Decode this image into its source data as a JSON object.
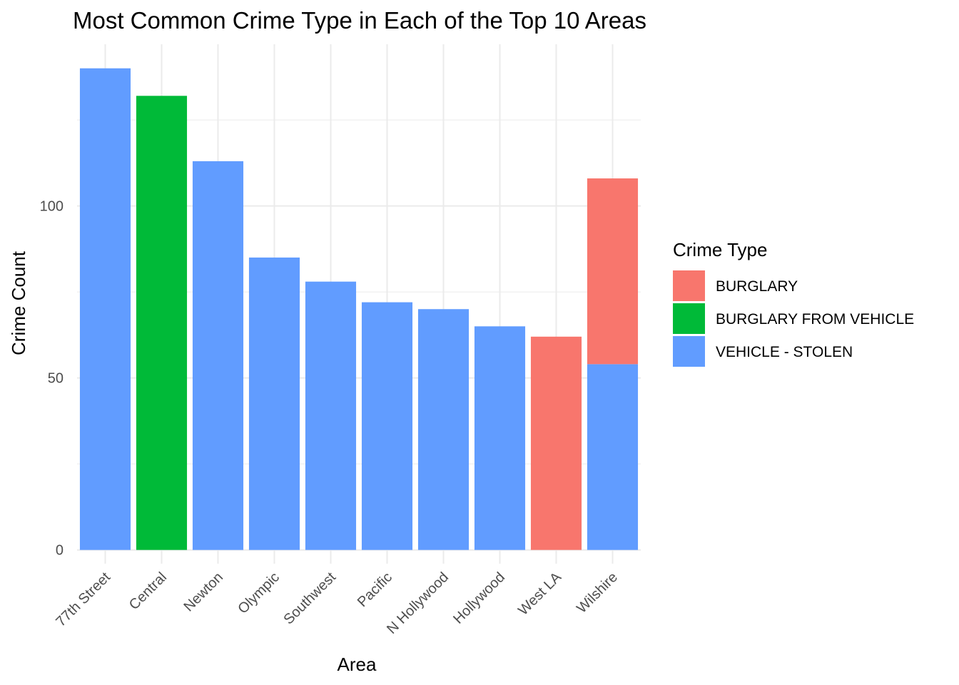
{
  "chart_data": {
    "type": "bar",
    "stacked": true,
    "title": "Most Common Crime Type in Each of the Top 10 Areas",
    "xlabel": "Area",
    "ylabel": "Crime Count",
    "categories": [
      "77th Street",
      "Central",
      "Newton",
      "Olympic",
      "Southwest",
      "Pacific",
      "N Hollywood",
      "Hollywood",
      "West LA",
      "Wilshire"
    ],
    "series": [
      {
        "name": "VEHICLE - STOLEN",
        "color": "#619CFF",
        "values": [
          140,
          0,
          113,
          85,
          78,
          72,
          70,
          65,
          0,
          54
        ]
      },
      {
        "name": "BURGLARY FROM VEHICLE",
        "color": "#00BA38",
        "values": [
          0,
          132,
          0,
          0,
          0,
          0,
          0,
          0,
          0,
          0
        ]
      },
      {
        "name": "BURGLARY",
        "color": "#F8766D",
        "values": [
          0,
          0,
          0,
          0,
          0,
          0,
          0,
          0,
          62,
          54
        ]
      }
    ],
    "yticks": [
      0,
      50,
      100
    ],
    "ylim": [
      -4,
      147
    ],
    "grid": true,
    "legend": {
      "title": "Crime Type",
      "position": "right",
      "items": [
        {
          "label": "BURGLARY",
          "color": "#F8766D"
        },
        {
          "label": "BURGLARY FROM VEHICLE",
          "color": "#00BA38"
        },
        {
          "label": "VEHICLE - STOLEN",
          "color": "#619CFF"
        }
      ]
    }
  }
}
